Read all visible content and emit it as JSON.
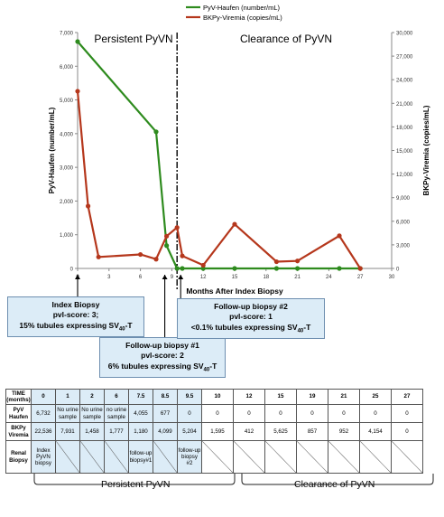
{
  "chart_data": {
    "type": "line",
    "legend": {
      "placement": "top-center",
      "entries": [
        "PyV-Haufen (number/mL)",
        "BKPy-Viremia (copies/mL)"
      ]
    },
    "xlabel": "Months After Index Biopsy",
    "ylabel_left": "PyV-Haufen (number/mL)",
    "ylabel_right": "BKPy-Viremia (copies/mL)",
    "xlim": [
      0,
      30
    ],
    "ylim_left": [
      0,
      7000
    ],
    "ylim_right": [
      0,
      30000
    ],
    "x_ticks": [
      "0",
      "3",
      "6",
      "9",
      "12",
      "15",
      "18",
      "21",
      "24",
      "27",
      "30"
    ],
    "y_left_ticks": [
      "0",
      "1,000",
      "2,000",
      "3,000",
      "4,000",
      "5,000",
      "6,000",
      "7,000"
    ],
    "y_right_ticks": [
      "0",
      "3,000",
      "6,000",
      "9,000",
      "12,000",
      "15,000",
      "18,000",
      "21,000",
      "24,000",
      "27,000",
      "30,000"
    ],
    "phase_labels": [
      "Persistent PyVN",
      "Clearance of PyVN"
    ],
    "divider_x": 9.5,
    "series": [
      {
        "name": "PyV-Haufen (number/mL)",
        "color": "#2e8b1e",
        "axis": "left",
        "x": [
          0,
          7.5,
          8.5,
          9.5,
          10,
          12,
          15,
          19,
          21,
          25,
          27
        ],
        "values": [
          6732,
          4055,
          677,
          0,
          0,
          0,
          0,
          0,
          0,
          0,
          0
        ]
      },
      {
        "name": "BKPy-Viremia (copies/mL)",
        "color": "#b5371c",
        "axis": "right",
        "x": [
          0,
          1,
          2,
          6,
          7.5,
          8.5,
          9.5,
          10,
          12,
          15,
          19,
          21,
          25,
          27
        ],
        "values": [
          22536,
          7931,
          1458,
          1777,
          1180,
          4099,
          5204,
          1595,
          412,
          5625,
          857,
          952,
          4154,
          0
        ]
      }
    ]
  },
  "callouts": {
    "index": {
      "l1": "Index Biopsy",
      "l2": "pvl-score: 3;",
      "l3": "15% tubules expressing SV",
      "sub": "40",
      "tail": "-T"
    },
    "fu1": {
      "l1": "Follow-up biopsy #1",
      "l2": "pvl-score: 2",
      "l3": "6% tubules expressing SV",
      "sub": "40",
      "tail": "-T"
    },
    "fu2": {
      "l1": "Follow-up biopsy #2",
      "l2": "pvl-score: 1",
      "l3": "<0.1% tubules expressing SV",
      "sub": "40",
      "tail": "-T"
    }
  },
  "table": {
    "row_labels": [
      "TIME (months)",
      "PyV Haufen",
      "BKPy Viremia",
      "Renal Biopsy"
    ],
    "time": [
      "0",
      "1",
      "2",
      "6",
      "7.5",
      "8.5",
      "9.5",
      "10",
      "12",
      "15",
      "19",
      "21",
      "25",
      "27"
    ],
    "haufen": [
      "6,732",
      "No urine sample",
      "No urine sample",
      "no urine sample",
      "4,055",
      "677",
      "0",
      "0",
      "0",
      "0",
      "0",
      "0",
      "0",
      "0"
    ],
    "viremia": [
      "22,536",
      "7,931",
      "1,458",
      "1,777",
      "1,180",
      "4,099",
      "5,204",
      "1,595",
      "412",
      "5,625",
      "857",
      "952",
      "4,154",
      "0"
    ],
    "biopsy": [
      "Index PyVN biopsy",
      "",
      "",
      "",
      "follow-up biopsy#1",
      "",
      "follow-up biopsy #2",
      "",
      "",
      "",
      "",
      "",
      "",
      ""
    ]
  },
  "bottom_labels": {
    "persistent": "Persistent PyVN",
    "clearance": "Clearance of  PyVN"
  }
}
